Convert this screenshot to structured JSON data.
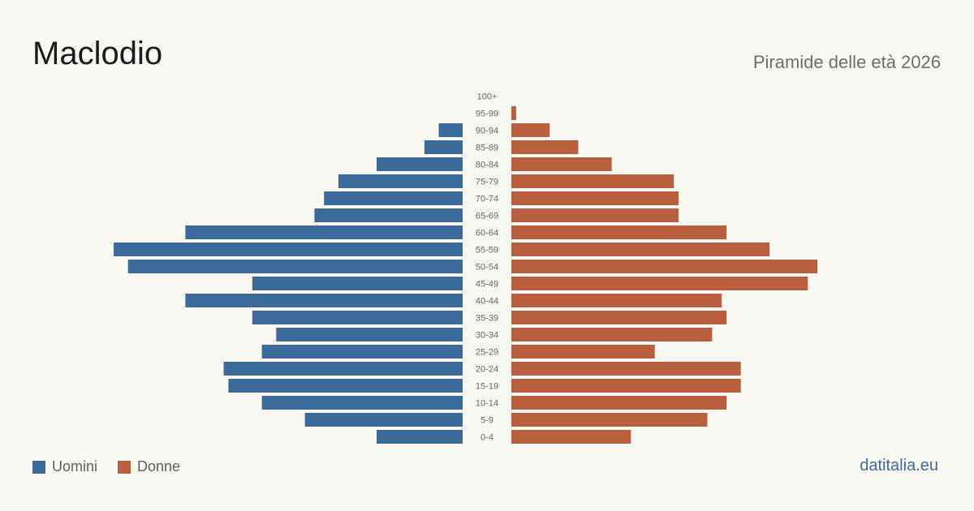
{
  "header": {
    "title": "Maclodio",
    "subtitle": "Piramide delle età 2026"
  },
  "legend": {
    "men_label": "Uomini",
    "women_label": "Donne"
  },
  "footer": {
    "source": "datitalia.eu"
  },
  "colors": {
    "men": "#3c6a9b",
    "women": "#b95e3e",
    "background": "#faf8f3"
  },
  "chart_data": {
    "type": "bar",
    "orientation": "horizontal",
    "categories": [
      "100+",
      "95-99",
      "90-94",
      "85-89",
      "80-84",
      "75-79",
      "70-74",
      "65-69",
      "60-64",
      "55-59",
      "50-54",
      "45-49",
      "40-44",
      "35-39",
      "30-34",
      "25-29",
      "20-24",
      "15-19",
      "10-14",
      "5-9",
      "0-4"
    ],
    "series": [
      {
        "name": "Uomini",
        "values": [
          0,
          0,
          5,
          8,
          18,
          26,
          29,
          31,
          58,
          73,
          70,
          44,
          58,
          44,
          39,
          42,
          50,
          49,
          42,
          33,
          18
        ]
      },
      {
        "name": "Donne",
        "values": [
          0,
          1,
          8,
          14,
          21,
          34,
          35,
          35,
          45,
          54,
          64,
          62,
          44,
          45,
          42,
          30,
          48,
          48,
          45,
          41,
          25
        ]
      }
    ],
    "xlim": [
      0,
      75
    ],
    "legend_position": "bottom-left",
    "grid": false
  }
}
